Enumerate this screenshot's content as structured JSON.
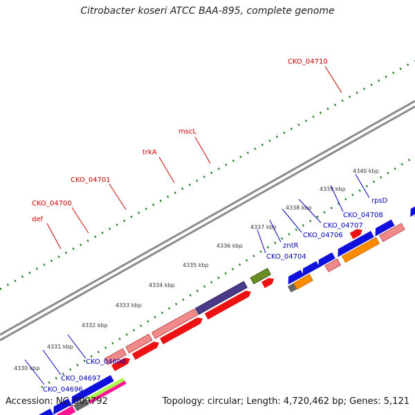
{
  "title": "Citrobacter koseri ATCC BAA-895, complete genome",
  "footer": {
    "accession": "Accession: NC_009792",
    "summary": "Topology: circular; Length: 4,720,462 bp; Genes: 5,121"
  },
  "colors": {
    "backbone": "#8a8a8a",
    "tick": "#1a7a1a",
    "forward_label": "#cc0000",
    "reverse_label": "#0000bb"
  },
  "kbp_ticks": [
    "4330 kbp",
    "4331 kbp",
    "4332 kbp",
    "4333 kbp",
    "4334 kbp",
    "4335 kbp",
    "4336 kbp",
    "4337 kbp",
    "4338 kbp",
    "4339 kbp",
    "4340 kbp"
  ],
  "forward_labels": [
    "def",
    "CKO_04700",
    "CKO_04701",
    "trkA",
    "mscL",
    "CKO_04710"
  ],
  "reverse_labels": [
    "CKO_04696",
    "CKO_04697",
    "CKO_04698",
    "CKO_04704",
    "zntR",
    "CKO_04706",
    "CKO_04707",
    "CKO_04708",
    "rpsD"
  ]
}
